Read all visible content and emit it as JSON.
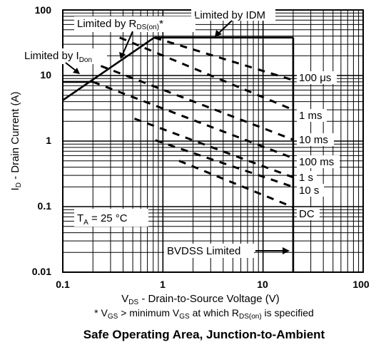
{
  "chart_data": {
    "type": "line",
    "title": "Safe Operating Area, Junction-to-Ambient",
    "xscale": "log",
    "yscale": "log",
    "xlim": [
      0.1,
      100
    ],
    "ylim": [
      0.01,
      100
    ],
    "grid": true,
    "x_ticks": [
      "0.1",
      "1",
      "10",
      "100"
    ],
    "y_ticks": [
      "100",
      "10",
      "1",
      "0.1",
      "0.01"
    ],
    "xlabel": {
      "main": "V",
      "sub": "DS",
      "rest": " - Drain-to-Source Voltage (V)"
    },
    "ylabel": {
      "main": "I",
      "sub": "D",
      "rest": " - Drain Current (A)"
    },
    "footnote": {
      "p1": "* V",
      "s1": "GS",
      "p2": " > minimum V",
      "s2": "GS",
      "p3": " at which R",
      "s3": "DS(on)",
      "p4": " is specified"
    },
    "temperature_note": {
      "main": "T",
      "sub": "A",
      "rest": " = 25 °C"
    },
    "limit_annotations": {
      "idm": "Limited by IDM",
      "rdson": {
        "main": "Limited by R",
        "sub": "DS(on)",
        "rest": "*"
      },
      "idon": {
        "main": "Limited by I",
        "sub": "Don"
      },
      "bvdss": "BVDSS Limited"
    },
    "boundaries": {
      "idm_current": 38,
      "idon_current": 8,
      "bvdss_voltage": 20,
      "rdson_line": [
        [
          0.1,
          4.2
        ],
        [
          0.82,
          38
        ]
      ]
    },
    "series": [
      {
        "name": "100 μs",
        "x": [
          0.82,
          20
        ],
        "y": [
          38,
          8.5
        ]
      },
      {
        "name": "1 ms",
        "x": [
          0.37,
          20
        ],
        "y": [
          38,
          3.0
        ]
      },
      {
        "name": "10 ms",
        "x": [
          0.24,
          20
        ],
        "y": [
          14,
          1.05
        ]
      },
      {
        "name": "100 ms",
        "x": [
          0.2,
          20
        ],
        "y": [
          8,
          0.55
        ]
      },
      {
        "name": "1 s",
        "x": [
          0.52,
          20
        ],
        "y": [
          2.2,
          0.28
        ]
      },
      {
        "name": "10 s",
        "x": [
          0.84,
          20
        ],
        "y": [
          1.03,
          0.2
        ]
      },
      {
        "name": "DC",
        "x": [
          1.45,
          20
        ],
        "y": [
          0.5,
          0.098
        ]
      }
    ]
  }
}
